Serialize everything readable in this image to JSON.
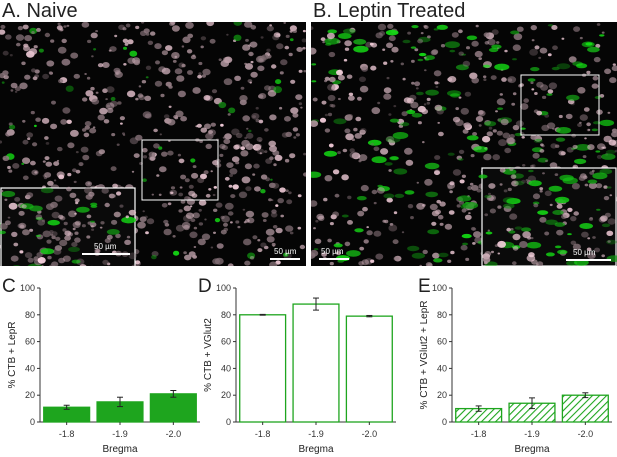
{
  "panels_top": [
    {
      "letter": "A.",
      "label": "Naive",
      "scale_main": "50 µm",
      "scale_inset": "50 µm"
    },
    {
      "letter": "B.",
      "label": "Leptin Treated",
      "scale_main": "50 µm",
      "scale_inset": "50 µm"
    }
  ],
  "colors": {
    "green": "#1ea51e",
    "axis": "#333333",
    "background": "#050505"
  },
  "chart_data": [
    {
      "type": "bar",
      "panel": "C",
      "categories": [
        "-1.8",
        "-1.9",
        "-2.0"
      ],
      "values": [
        11,
        15,
        21
      ],
      "errors": [
        1.5,
        3.5,
        2.5
      ],
      "xlabel": "Bregma",
      "ylabel": "% CTB + LepR",
      "ylim": [
        0,
        100
      ],
      "yticks": [
        0,
        20,
        40,
        60,
        80,
        100
      ],
      "fill": "solid"
    },
    {
      "type": "bar",
      "panel": "D",
      "categories": [
        "-1.8",
        "-1.9",
        "-2.0"
      ],
      "values": [
        80,
        88,
        79
      ],
      "errors": [
        0.3,
        4.5,
        0.5
      ],
      "xlabel": "Bregma",
      "ylabel": "% CTB + VGlut2",
      "ylim": [
        0,
        100
      ],
      "yticks": [
        0,
        20,
        40,
        60,
        80,
        100
      ],
      "fill": "open"
    },
    {
      "type": "bar",
      "panel": "E",
      "categories": [
        "-1.8",
        "-1.9",
        "-2.0"
      ],
      "values": [
        10,
        14,
        20
      ],
      "errors": [
        2,
        4,
        1.8
      ],
      "xlabel": "Bregma",
      "ylabel": "% CTB + VGlut2 + LepR",
      "ylim": [
        0,
        100
      ],
      "yticks": [
        0,
        20,
        40,
        60,
        80,
        100
      ],
      "fill": "hatched"
    }
  ]
}
